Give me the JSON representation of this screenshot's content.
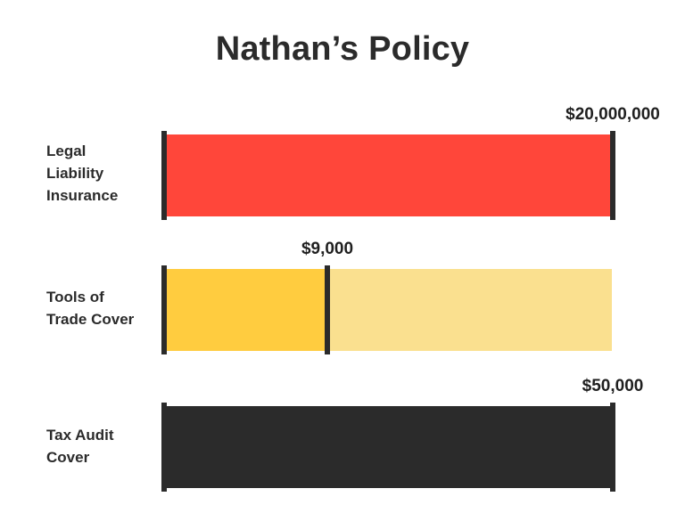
{
  "chart_data": {
    "type": "bar",
    "orientation": "horizontal",
    "title": "Nathan’s Policy",
    "rows": [
      {
        "label_lines": [
          "Legal",
          "Liability",
          "Insurance"
        ],
        "value": 20000000,
        "limit": 20000000,
        "value_label": "$20,000,000",
        "color": "#ff463a",
        "track_color": "#ff463a"
      },
      {
        "label_lines": [
          "Tools of",
          "Trade Cover"
        ],
        "value": 9000,
        "limit": 25000,
        "value_label": "$9,000",
        "color": "#ffcc3f",
        "track_color": "#fae08f"
      },
      {
        "label_lines": [
          "Tax Audit",
          "Cover"
        ],
        "value": 50000,
        "limit": 50000,
        "value_label": "$50,000",
        "color": "#2b2b2b",
        "track_color": "#2b2b2b"
      }
    ]
  }
}
